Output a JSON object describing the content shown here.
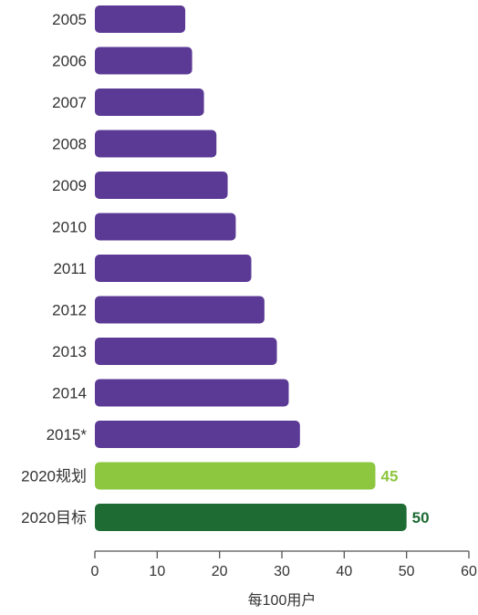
{
  "chart_data": {
    "type": "bar",
    "orientation": "horizontal",
    "categories": [
      "2005",
      "2006",
      "2007",
      "2008",
      "2009",
      "2010",
      "2011",
      "2012",
      "2013",
      "2014",
      "2015*",
      "2020规划",
      "2020目标"
    ],
    "values": [
      14.5,
      15.6,
      17.5,
      19.5,
      21.3,
      22.6,
      25.1,
      27.2,
      29.2,
      31.1,
      32.9,
      45,
      50
    ],
    "bar_colors": [
      "#5b3a96",
      "#5b3a96",
      "#5b3a96",
      "#5b3a96",
      "#5b3a96",
      "#5b3a96",
      "#5b3a96",
      "#5b3a96",
      "#5b3a96",
      "#5b3a96",
      "#5b3a96",
      "#8dc63f",
      "#1e6b34"
    ],
    "data_labels": [
      "",
      "",
      "",
      "",
      "",
      "",
      "",
      "",
      "",
      "",
      "",
      "45",
      "50"
    ],
    "xlabel": "每100用户",
    "xlim": [
      0,
      60
    ],
    "xticks": [
      "0",
      "10",
      "20",
      "30",
      "40",
      "50",
      "60"
    ],
    "grid": false,
    "legend": "none"
  },
  "colors": {
    "purple": "#5b3a96",
    "light_green": "#8dc63f",
    "dark_green": "#1e6b34",
    "axis": "#555555",
    "text": "#333333"
  }
}
